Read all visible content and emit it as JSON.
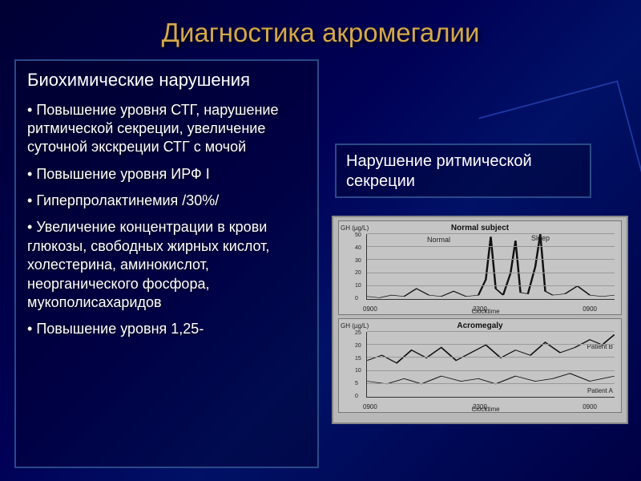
{
  "title": "Диагностика акромегалии",
  "left": {
    "subtitle": "Биохимические нарушения",
    "bullets": [
      "Повышение уровня СТГ, нарушение ритмической секреции, увеличение суточной экскреции СТГ с мочой",
      "Повышение уровня ИРФ I",
      "Гиперпролактинемия /30%/",
      "Увеличение концентрации в крови глюкозы, свободных жирных кислот, холестерина, аминокислот, неорганического фосфора, мукополисахаридов",
      "Повышение уровня 1,25-"
    ]
  },
  "right_caption": "Нарушение ритмической секреции",
  "chart_top": {
    "title": "Normal subject",
    "ylabel": "GH (µg/L)",
    "label_normal": "Normal",
    "label_sleep": "Sleep",
    "xlabel": "Clocktime",
    "xticks": [
      "0900",
      "2300",
      "0900"
    ],
    "ymax": 50,
    "ytick_step": 10,
    "background": "#c5c5c5",
    "line_color": "#111111",
    "grid_color": "#999999",
    "series": [
      {
        "x": 0,
        "y": 2
      },
      {
        "x": 5,
        "y": 1
      },
      {
        "x": 10,
        "y": 3
      },
      {
        "x": 15,
        "y": 2
      },
      {
        "x": 20,
        "y": 8
      },
      {
        "x": 25,
        "y": 3
      },
      {
        "x": 30,
        "y": 2
      },
      {
        "x": 35,
        "y": 6
      },
      {
        "x": 40,
        "y": 2
      },
      {
        "x": 45,
        "y": 3
      },
      {
        "x": 48,
        "y": 15
      },
      {
        "x": 50,
        "y": 48
      },
      {
        "x": 52,
        "y": 8
      },
      {
        "x": 55,
        "y": 3
      },
      {
        "x": 58,
        "y": 20
      },
      {
        "x": 60,
        "y": 45
      },
      {
        "x": 62,
        "y": 5
      },
      {
        "x": 65,
        "y": 4
      },
      {
        "x": 68,
        "y": 25
      },
      {
        "x": 70,
        "y": 50
      },
      {
        "x": 72,
        "y": 6
      },
      {
        "x": 75,
        "y": 3
      },
      {
        "x": 80,
        "y": 4
      },
      {
        "x": 85,
        "y": 10
      },
      {
        "x": 90,
        "y": 3
      },
      {
        "x": 95,
        "y": 2
      },
      {
        "x": 100,
        "y": 3
      }
    ]
  },
  "chart_bot": {
    "title": "Acromegaly",
    "ylabel": "GH (µg/L)",
    "label_pa": "Patient A",
    "label_pb": "Patient B",
    "xlabel": "Clocktime",
    "xticks": [
      "0900",
      "2300",
      "0900"
    ],
    "ymax": 25,
    "ytick_step": 5,
    "background": "#c5c5c5",
    "line_color_a": "#111111",
    "line_color_b": "#111111",
    "grid_color": "#999999",
    "series_a": [
      {
        "x": 0,
        "y": 6
      },
      {
        "x": 8,
        "y": 5
      },
      {
        "x": 15,
        "y": 7
      },
      {
        "x": 22,
        "y": 5
      },
      {
        "x": 30,
        "y": 8
      },
      {
        "x": 38,
        "y": 6
      },
      {
        "x": 45,
        "y": 7
      },
      {
        "x": 52,
        "y": 5
      },
      {
        "x": 60,
        "y": 8
      },
      {
        "x": 68,
        "y": 6
      },
      {
        "x": 75,
        "y": 7
      },
      {
        "x": 82,
        "y": 9
      },
      {
        "x": 90,
        "y": 6
      },
      {
        "x": 100,
        "y": 8
      }
    ],
    "series_b": [
      {
        "x": 0,
        "y": 14
      },
      {
        "x": 6,
        "y": 16
      },
      {
        "x": 12,
        "y": 13
      },
      {
        "x": 18,
        "y": 18
      },
      {
        "x": 24,
        "y": 15
      },
      {
        "x": 30,
        "y": 19
      },
      {
        "x": 36,
        "y": 14
      },
      {
        "x": 42,
        "y": 17
      },
      {
        "x": 48,
        "y": 20
      },
      {
        "x": 54,
        "y": 15
      },
      {
        "x": 60,
        "y": 18
      },
      {
        "x": 66,
        "y": 16
      },
      {
        "x": 72,
        "y": 21
      },
      {
        "x": 78,
        "y": 17
      },
      {
        "x": 84,
        "y": 19
      },
      {
        "x": 90,
        "y": 22
      },
      {
        "x": 95,
        "y": 20
      },
      {
        "x": 100,
        "y": 24
      }
    ]
  }
}
